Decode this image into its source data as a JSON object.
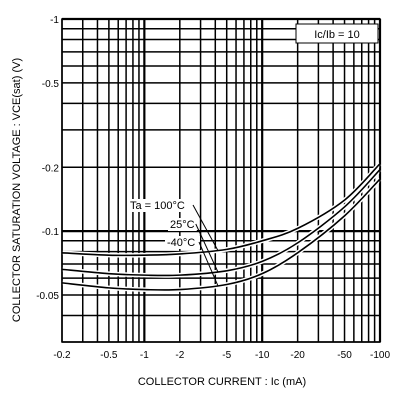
{
  "chart_data": {
    "type": "line",
    "title": "",
    "xlabel": "COLLECTOR  CURRENT : Ic (mA)",
    "ylabel": "COLLECTOR  SATURATION  VOLTAGE : VCE(sat) (V)",
    "x_scale": "log",
    "y_scale": "log",
    "xlim": [
      -0.2,
      -100
    ],
    "ylim": [
      -0.03,
      -1
    ],
    "grid": true,
    "x_ticks": [
      {
        "value": -0.2,
        "label": "-0.2"
      },
      {
        "value": -0.5,
        "label": "-0.5"
      },
      {
        "value": -1,
        "label": "-1"
      },
      {
        "value": -2,
        "label": "-2"
      },
      {
        "value": -5,
        "label": "-5"
      },
      {
        "value": -10,
        "label": "-10"
      },
      {
        "value": -20,
        "label": "-20"
      },
      {
        "value": -50,
        "label": "-50"
      },
      {
        "value": -100,
        "label": "-100"
      }
    ],
    "y_ticks": [
      {
        "value": -1,
        "label": "-1"
      },
      {
        "value": -0.5,
        "label": "-0.5"
      },
      {
        "value": -0.2,
        "label": "-0.2"
      },
      {
        "value": -0.1,
        "label": "-0.1"
      },
      {
        "value": -0.05,
        "label": "-0.05"
      }
    ],
    "condition_label": "Ic/Ib = 10",
    "series": [
      {
        "name": "Ta = 100°C",
        "x": [
          -0.2,
          -0.5,
          -1,
          -2,
          -5,
          -10,
          -20,
          -50,
          -100
        ],
        "y": [
          -0.079,
          -0.077,
          -0.077,
          -0.078,
          -0.082,
          -0.09,
          -0.103,
          -0.14,
          -0.208
        ]
      },
      {
        "name": "25°C",
        "x": [
          -0.2,
          -0.5,
          -1,
          -2,
          -5,
          -10,
          -20,
          -50,
          -100
        ],
        "y": [
          -0.066,
          -0.063,
          -0.062,
          -0.062,
          -0.065,
          -0.072,
          -0.088,
          -0.13,
          -0.195
        ]
      },
      {
        "name": "-40°C",
        "x": [
          -0.2,
          -0.5,
          -1,
          -2,
          -5,
          -10,
          -20,
          -50,
          -100
        ],
        "y": [
          -0.057,
          -0.054,
          -0.053,
          -0.053,
          -0.056,
          -0.063,
          -0.079,
          -0.118,
          -0.176
        ]
      }
    ]
  }
}
